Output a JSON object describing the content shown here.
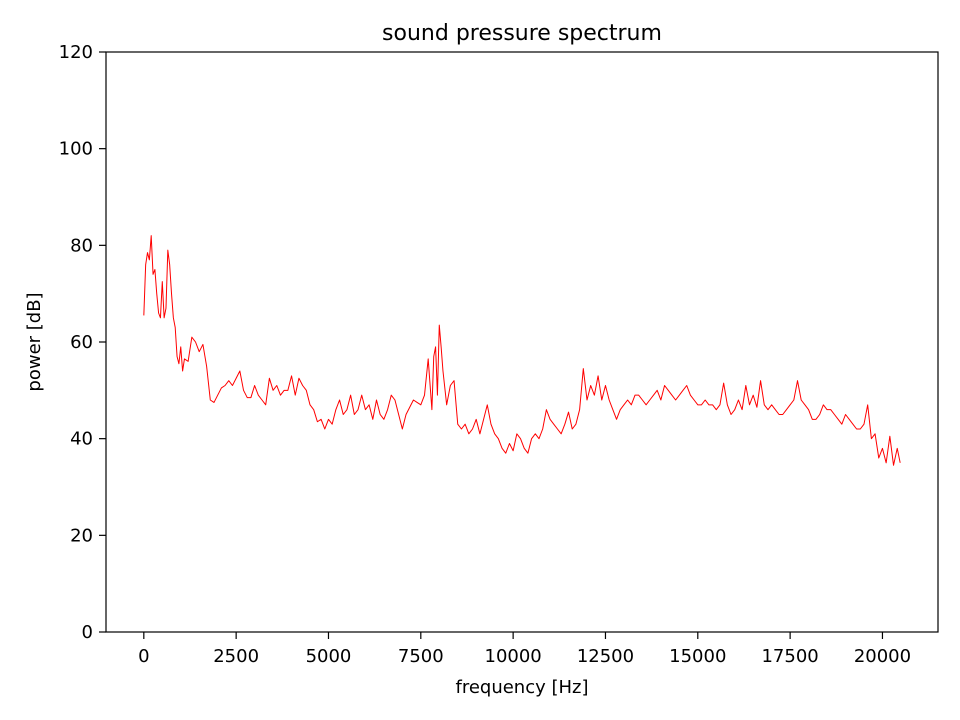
{
  "chart_data": {
    "type": "line",
    "title": "sound pressure spectrum",
    "xlabel": "frequency [Hz]",
    "ylabel": "power [dB]",
    "xlim": [
      -1024,
      21504
    ],
    "ylim": [
      0,
      120
    ],
    "xticks": [
      0,
      2500,
      5000,
      7500,
      10000,
      12500,
      15000,
      17500,
      20000
    ],
    "xtick_labels": [
      "0",
      "2500",
      "5000",
      "7500",
      "10000",
      "12500",
      "15000",
      "17500",
      "20000"
    ],
    "yticks": [
      0,
      20,
      40,
      60,
      80,
      100,
      120
    ],
    "ytick_labels": [
      "0",
      "20",
      "40",
      "60",
      "80",
      "100",
      "120"
    ],
    "grid": false,
    "series": [
      {
        "color": "#ff0000",
        "x": [
          0,
          50,
          100,
          150,
          200,
          250,
          300,
          350,
          400,
          450,
          500,
          550,
          600,
          650,
          700,
          750,
          800,
          850,
          900,
          950,
          1000,
          1050,
          1100,
          1200,
          1300,
          1400,
          1500,
          1600,
          1700,
          1800,
          1900,
          2000,
          2100,
          2200,
          2300,
          2400,
          2500,
          2600,
          2700,
          2800,
          2900,
          3000,
          3100,
          3200,
          3300,
          3400,
          3500,
          3600,
          3700,
          3800,
          3900,
          4000,
          4100,
          4200,
          4300,
          4400,
          4500,
          4600,
          4700,
          4800,
          4900,
          5000,
          5100,
          5200,
          5300,
          5400,
          5500,
          5600,
          5700,
          5800,
          5900,
          6000,
          6100,
          6200,
          6300,
          6400,
          6500,
          6600,
          6700,
          6800,
          6900,
          7000,
          7100,
          7200,
          7300,
          7400,
          7500,
          7600,
          7700,
          7800,
          7850,
          7900,
          7950,
          8000,
          8050,
          8100,
          8200,
          8300,
          8400,
          8500,
          8600,
          8700,
          8800,
          8900,
          9000,
          9100,
          9200,
          9300,
          9400,
          9500,
          9600,
          9700,
          9800,
          9900,
          10000,
          10100,
          10200,
          10300,
          10400,
          10500,
          10600,
          10700,
          10800,
          10900,
          11000,
          11100,
          11200,
          11300,
          11400,
          11500,
          11600,
          11700,
          11800,
          11900,
          12000,
          12100,
          12200,
          12300,
          12400,
          12500,
          12600,
          12700,
          12800,
          12900,
          13000,
          13100,
          13200,
          13300,
          13400,
          13500,
          13600,
          13700,
          13800,
          13900,
          14000,
          14100,
          14200,
          14300,
          14400,
          14500,
          14600,
          14700,
          14800,
          14900,
          15000,
          15100,
          15200,
          15300,
          15400,
          15500,
          15600,
          15700,
          15800,
          15900,
          16000,
          16100,
          16200,
          16300,
          16400,
          16500,
          16600,
          16700,
          16800,
          16900,
          17000,
          17100,
          17200,
          17300,
          17400,
          17500,
          17600,
          17700,
          17800,
          17900,
          18000,
          18100,
          18200,
          18300,
          18400,
          18500,
          18600,
          18700,
          18800,
          18900,
          19000,
          19100,
          19200,
          19300,
          19400,
          19500,
          19600,
          19700,
          19800,
          19900,
          20000,
          20100,
          20200,
          20300,
          20400,
          20480
        ],
        "y": [
          65.5,
          76,
          78.5,
          77,
          82,
          74,
          75,
          70,
          66,
          65,
          72.5,
          65,
          67,
          79,
          76,
          70,
          65,
          63,
          57,
          55.5,
          59,
          54,
          56.5,
          56,
          61,
          60,
          58,
          59.5,
          55,
          48,
          47.5,
          49,
          50.5,
          51,
          52,
          51,
          52.5,
          54,
          50,
          48.5,
          48.5,
          51,
          49,
          48,
          47,
          52.5,
          50,
          51,
          49,
          50,
          50,
          53,
          49,
          52.5,
          51,
          50,
          47,
          46,
          43.5,
          44,
          42,
          44,
          43,
          46,
          48,
          45,
          46,
          49,
          45,
          46,
          49,
          46,
          47,
          44,
          48,
          45,
          44,
          46,
          49,
          48,
          45,
          42,
          45,
          46.5,
          48,
          47.5,
          47,
          49,
          56.5,
          46,
          57,
          59,
          49,
          63.5,
          59,
          54,
          47,
          51,
          52,
          43,
          42,
          43,
          41,
          42,
          44,
          41,
          44,
          47,
          43,
          41,
          40,
          38,
          37,
          39,
          37.5,
          41,
          40,
          38,
          37,
          40,
          41,
          40,
          42,
          46,
          44,
          43,
          42,
          41,
          43,
          45.5,
          42,
          43,
          46,
          54.5,
          48,
          51,
          49,
          53,
          48,
          51,
          48,
          46,
          44,
          46,
          47,
          48,
          47,
          49,
          49,
          48,
          47,
          48,
          49,
          50,
          48,
          51,
          50,
          49,
          48,
          49,
          50,
          51,
          49,
          48,
          47,
          47,
          48,
          47,
          47,
          46,
          47,
          51.5,
          47,
          45,
          46,
          48,
          46,
          51,
          47,
          49,
          46.5,
          52,
          47,
          46,
          47,
          46,
          45,
          45,
          46,
          47,
          48,
          52,
          48,
          47,
          46,
          44,
          44,
          45,
          47,
          46,
          46,
          45,
          44,
          43,
          45,
          44,
          43,
          42,
          42,
          43,
          47,
          40,
          41,
          36,
          38,
          35,
          40.5,
          34.5,
          38,
          35
        ]
      }
    ]
  }
}
